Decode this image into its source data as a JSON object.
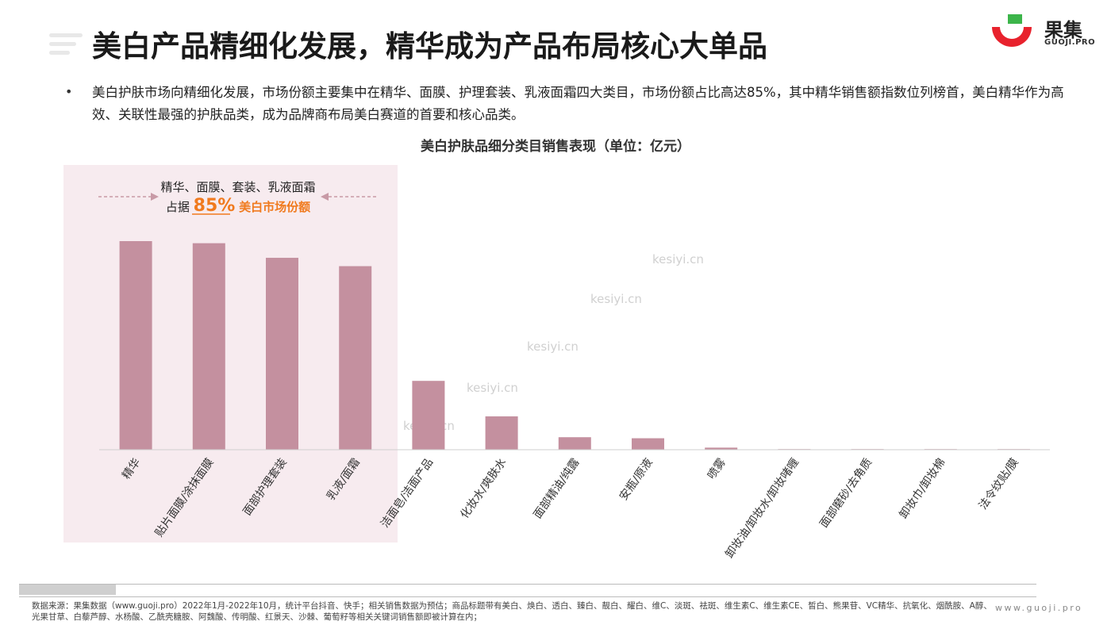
{
  "header": {
    "title": "美白产品精细化发展，精华成为产品布局核心大单品",
    "logo_cn": "果集",
    "logo_en": "GUOJI.PRO",
    "logo_colors": {
      "red": "#e8222d",
      "green": "#3cb54a"
    }
  },
  "bullet": {
    "text": "美白护肤市场向精细化发展，市场份额主要集中在精华、面膜、护理套装、乳液面霜四大类目，市场份额占比高达85%，其中精华销售额指数位列榜首，美白精华作为高效、关联性最强的护肤品类，成为品牌商布局美白赛道的首要和核心品类。"
  },
  "chart_data": {
    "type": "bar",
    "title": "美白护肤品细分类目销售表现（单位：亿元）",
    "categories": [
      "精华",
      "贴片面膜/涂抹面膜",
      "面部护理套装",
      "乳液/面霜",
      "洁面皂/洁面产品",
      "化妆水/爽肤水",
      "面部精油/纯露",
      "安瓶/原液",
      "喷雾",
      "卸妆油/卸妆水/卸妆啫喱",
      "面部磨砂/去角质",
      "卸妆巾/卸妆棉",
      "法令纹贴/膜"
    ],
    "values": [
      100,
      99,
      92,
      88,
      33,
      16,
      6,
      5.5,
      1,
      0.3,
      0.1,
      0.1,
      0.05
    ],
    "ylim": [
      0,
      100
    ],
    "grid": false,
    "bar_color": "#c4909f",
    "highlight": {
      "line1": "精华、面膜、套装、乳液面霜",
      "line2_prefix": "占据",
      "line2_value": "85%",
      "line2_suffix": "美白市场份额",
      "bg_color": "#f7ebef",
      "accent_color": "#f07a1e"
    }
  },
  "footer": {
    "source": "数据来源：果集数据（www.guoji.pro）2022年1月-2022年10月，统计平台抖音、快手；相关销售数据为预估；商品标题带有美白、焕白、透白、臻白、靓白、耀白、维C、淡斑、祛斑、维生素C、维生素CE、皙白、熊果苷、VC精华、抗氧化、烟酰胺、A醇、光果甘草、白藜芦醇、水杨酸、乙酰壳糖胺、阿魏酸、传明酸、红景天、沙棘、葡萄籽等相关关键词销售额即被计算在内；",
    "site": "www.guoji.pro"
  },
  "watermark": "kesiyi.cn"
}
